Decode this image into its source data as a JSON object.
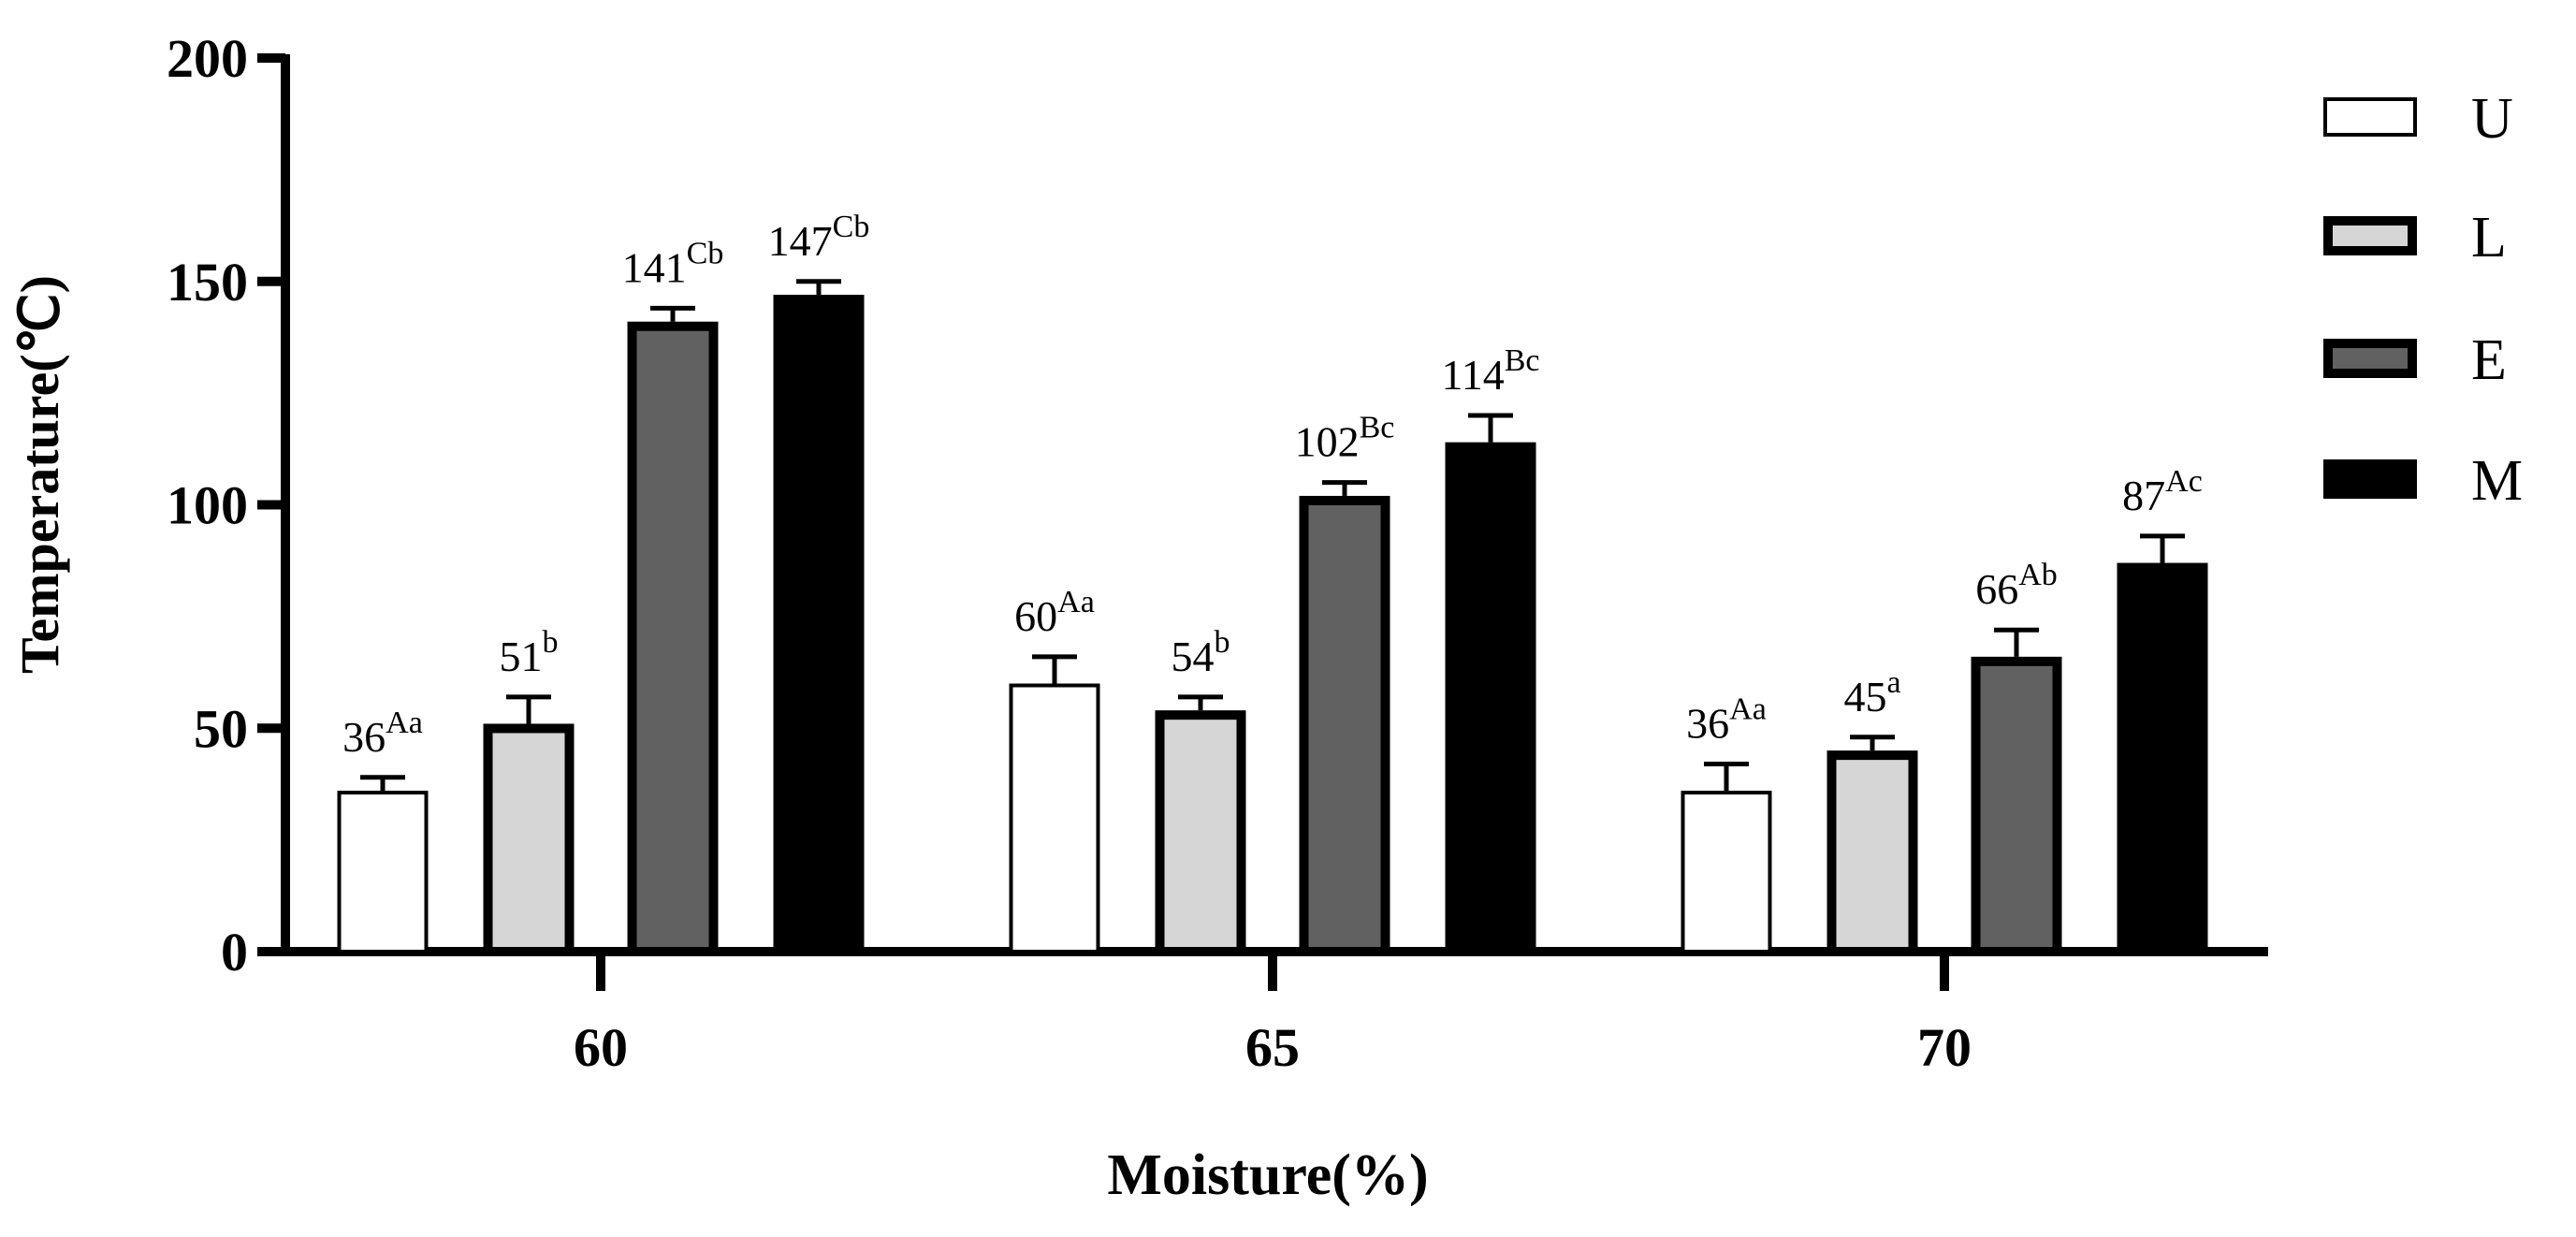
{
  "chart_data": {
    "type": "bar",
    "xlabel": "Moisture(%)",
    "ylabel": "Temperature(℃)",
    "categories": [
      "60",
      "65",
      "70"
    ],
    "ylim": [
      0,
      200
    ],
    "yticks": [
      "0",
      "50",
      "100",
      "150",
      "200"
    ],
    "grid": false,
    "legend_position": "top-right",
    "series": [
      {
        "name": "U",
        "color": "#ffffff",
        "values": [
          36,
          60,
          36
        ],
        "errors": [
          3,
          6,
          6
        ],
        "labels": [
          {
            "value": "36",
            "sup": "Aa"
          },
          {
            "value": "60",
            "sup": "Aa"
          },
          {
            "value": "36",
            "sup": "Aa"
          }
        ]
      },
      {
        "name": "L",
        "color": "#d6d6d6",
        "values": [
          51,
          54,
          45
        ],
        "errors": [
          6,
          3,
          3
        ],
        "labels": [
          {
            "value": "51",
            "sup": "b"
          },
          {
            "value": "54",
            "sup": "b"
          },
          {
            "value": "45",
            "sup": "a"
          }
        ]
      },
      {
        "name": "E",
        "color": "#616161",
        "values": [
          141,
          102,
          66
        ],
        "errors": [
          3,
          3,
          6
        ],
        "labels": [
          {
            "value": "141",
            "sup": "Cb"
          },
          {
            "value": "102",
            "sup": "Bc"
          },
          {
            "value": "66",
            "sup": "Ab"
          }
        ]
      },
      {
        "name": "M",
        "color": "#000000",
        "values": [
          147,
          114,
          87
        ],
        "errors": [
          3,
          6,
          6
        ],
        "labels": [
          {
            "value": "147",
            "sup": "Cb"
          },
          {
            "value": "114",
            "sup": "Bc"
          },
          {
            "value": "87",
            "sup": "Ac"
          }
        ]
      }
    ]
  }
}
